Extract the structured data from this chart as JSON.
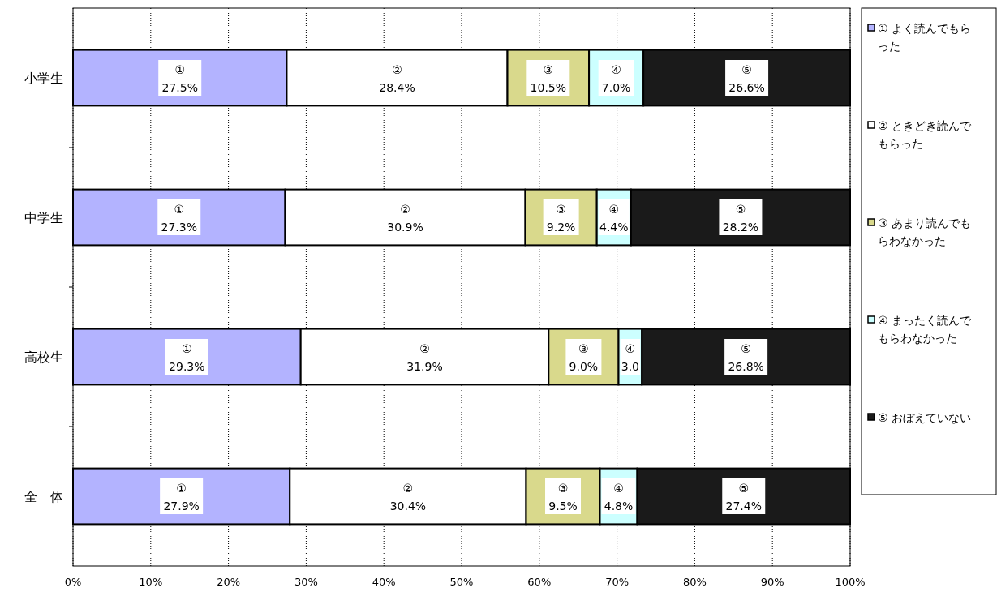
{
  "chart_data": {
    "type": "bar",
    "orientation": "horizontal",
    "stacked": true,
    "categories": [
      "小学生",
      "中学生",
      "高校生",
      "全　体"
    ],
    "series": [
      {
        "name": "① よく読んでもらった",
        "color": "#b3b3ff",
        "values": [
          27.5,
          27.3,
          29.3,
          27.9
        ],
        "value_labels": [
          "①\n27.5%",
          "①\n27.3%",
          "①\n29.3%",
          "①\n27.9%"
        ]
      },
      {
        "name": "② ときどき読んでもらった",
        "color": "#ffffff",
        "values": [
          28.4,
          30.9,
          31.9,
          30.4
        ],
        "value_labels": [
          "②\n28.4%",
          "②\n30.9%",
          "②\n31.9%",
          "②\n30.4%"
        ]
      },
      {
        "name": "③ あまり読んでもらわなかった",
        "color": "#d9d98c",
        "values": [
          10.5,
          9.2,
          9.0,
          9.5
        ],
        "value_labels": [
          "③\n10.5%",
          "③\n9.2%",
          "③\n9.0%",
          "③\n9.5%"
        ]
      },
      {
        "name": "④ まったく読んでもらわなかった",
        "color": "#ccffff",
        "values": [
          7.0,
          4.4,
          3.0,
          4.8
        ],
        "value_labels": [
          "④\n7.0%",
          "④\n4.4%",
          "④\n3.0",
          "④\n4.8%"
        ]
      },
      {
        "name": "⑤ おぼえていない",
        "color": "#1a1a1a",
        "values": [
          26.6,
          28.2,
          26.8,
          27.4
        ],
        "value_labels": [
          "⑤\n26.6%",
          "⑤\n28.2%",
          "⑤\n26.8%",
          "⑤\n27.4%"
        ]
      }
    ],
    "xlim": [
      0,
      100
    ],
    "xticks": [
      {
        "value": 0,
        "label": "0%"
      },
      {
        "value": 10,
        "label": "10%"
      },
      {
        "value": 20,
        "label": "20%"
      },
      {
        "value": 30,
        "label": "30%"
      },
      {
        "value": 40,
        "label": "40%"
      },
      {
        "value": 50,
        "label": "50%"
      },
      {
        "value": 60,
        "label": "60%"
      },
      {
        "value": 70,
        "label": "70%"
      },
      {
        "value": 80,
        "label": "80%"
      },
      {
        "value": 90,
        "label": "90%"
      },
      {
        "value": 100,
        "label": "100%"
      }
    ],
    "grid": "x",
    "legend": "right"
  }
}
